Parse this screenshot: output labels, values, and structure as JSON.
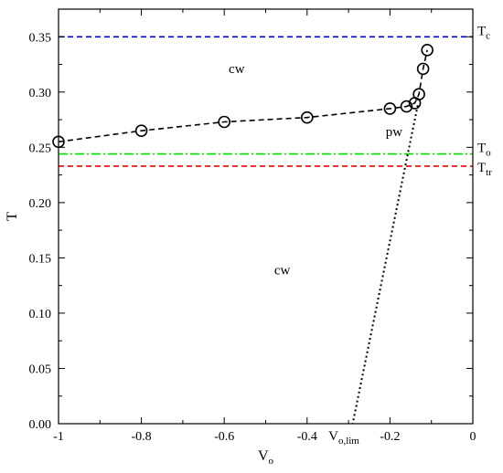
{
  "chart_data": {
    "type": "line",
    "xlabel_main": "V",
    "xlabel_sub": "o",
    "ylabel": "T",
    "xlim": [
      -1.0,
      0.0
    ],
    "ylim": [
      0.0,
      0.375
    ],
    "xticks": [
      {
        "value": -1.0,
        "label": "-1"
      },
      {
        "value": -0.8,
        "label": "-0.8"
      },
      {
        "value": -0.6,
        "label": "-0.6"
      },
      {
        "value": -0.4,
        "label": "-0.4"
      },
      {
        "value": -0.2,
        "label": "-0.2"
      },
      {
        "value": 0.0,
        "label": "0"
      }
    ],
    "yticks": [
      {
        "value": 0.0,
        "label": "0.00"
      },
      {
        "value": 0.05,
        "label": "0.05"
      },
      {
        "value": 0.1,
        "label": "0.10"
      },
      {
        "value": 0.15,
        "label": "0.15"
      },
      {
        "value": 0.2,
        "label": "0.20"
      },
      {
        "value": 0.25,
        "label": "0.25"
      },
      {
        "value": 0.3,
        "label": "0.30"
      },
      {
        "value": 0.35,
        "label": "0.35"
      }
    ],
    "grid": false,
    "series": [
      {
        "style": "dashed-black-with-circle-markers",
        "color": "#000000",
        "x": [
          -1.0,
          -0.8,
          -0.6,
          -0.4,
          -0.2,
          -0.16,
          -0.14,
          -0.13,
          -0.12,
          -0.11
        ],
        "y": [
          0.255,
          0.265,
          0.273,
          0.277,
          0.285,
          0.287,
          0.29,
          0.298,
          0.321,
          0.338
        ]
      },
      {
        "style": "dotted-black",
        "color": "#000000",
        "x": [
          -0.133,
          -0.29
        ],
        "y": [
          0.288,
          0.0
        ]
      }
    ],
    "reference_lines": [
      {
        "axis": "y",
        "value": 0.35,
        "color": "#0000cc",
        "style": "dashed",
        "label_main": "T",
        "label_sub": "c"
      },
      {
        "axis": "y",
        "value": 0.244,
        "color": "#00dd00",
        "style": "dashdot",
        "label_main": "T",
        "label_sub": "o"
      },
      {
        "axis": "y",
        "value": 0.233,
        "color": "#ee0000",
        "style": "dashed",
        "label_main": "T",
        "label_sub": "tr"
      }
    ],
    "annotations": [
      {
        "text": "cw",
        "x": -0.57,
        "y": 0.317
      },
      {
        "text": "pw",
        "x": -0.19,
        "y": 0.26
      },
      {
        "text": "cw",
        "x": -0.46,
        "y": 0.135
      }
    ],
    "vlim_label": {
      "main": "V",
      "sub": "o,lim",
      "x": -0.3,
      "y": -0.01
    }
  }
}
